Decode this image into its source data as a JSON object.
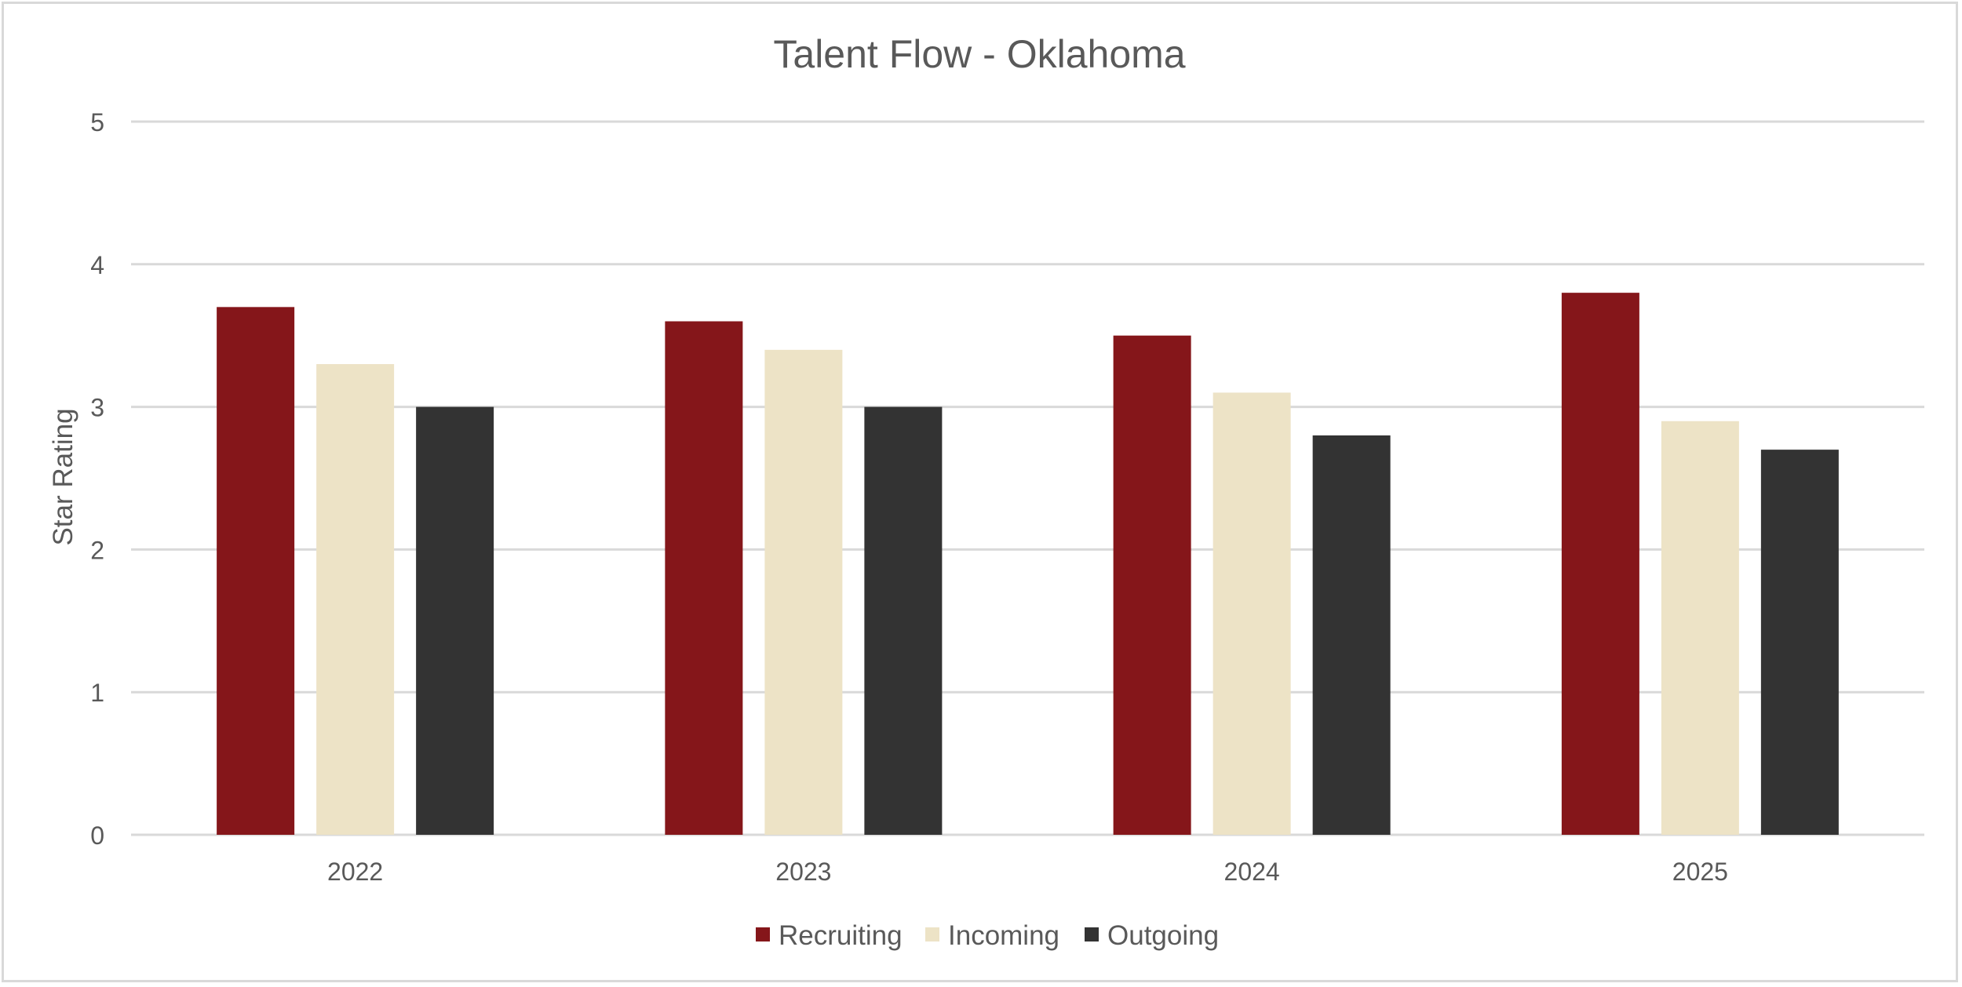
{
  "chart_data": {
    "type": "bar",
    "title": "Talent Flow - Oklahoma",
    "xlabel": "",
    "ylabel": "Star Rating",
    "ylim": [
      0,
      5
    ],
    "yticks": [
      "0",
      "1",
      "2",
      "3",
      "4",
      "5"
    ],
    "grid": true,
    "legend_position": "bottom",
    "categories": [
      "2022",
      "2023",
      "2024",
      "2025"
    ],
    "series": [
      {
        "name": "Recruiting",
        "color": "#85161a",
        "values": [
          3.7,
          3.6,
          3.5,
          3.8
        ]
      },
      {
        "name": "Incoming",
        "color": "#ede3c6",
        "values": [
          3.3,
          3.4,
          3.1,
          2.9
        ]
      },
      {
        "name": "Outgoing",
        "color": "#333333",
        "values": [
          3.0,
          3.0,
          2.8,
          2.7
        ]
      }
    ]
  },
  "colors": {
    "gridline": "#d9d9d9",
    "text": "#595959",
    "border": "#d9d9d9"
  }
}
